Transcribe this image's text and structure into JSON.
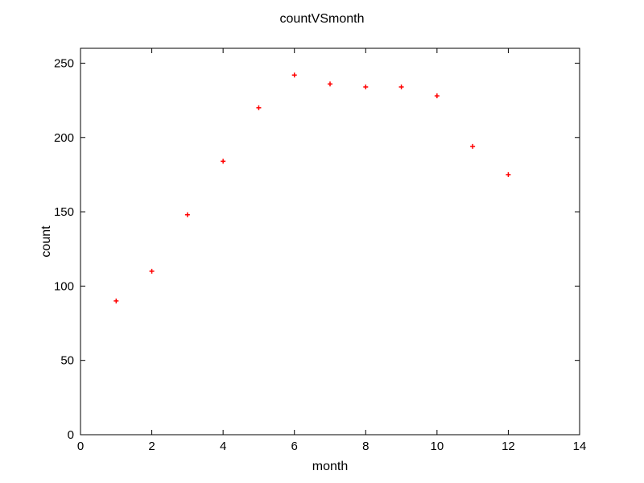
{
  "chart_data": {
    "type": "scatter",
    "title": "countVSmonth",
    "xlabel": "month",
    "ylabel": "count",
    "xlim": [
      0,
      14
    ],
    "ylim": [
      0,
      260
    ],
    "xticks": [
      0,
      2,
      4,
      6,
      8,
      10,
      12,
      14
    ],
    "yticks": [
      0,
      50,
      100,
      150,
      200,
      250
    ],
    "grid": false,
    "marker": "+",
    "marker_color": "#ff0000",
    "series": [
      {
        "x": [
          1,
          2,
          3,
          4,
          5,
          6,
          7,
          8,
          9,
          10,
          11,
          12
        ],
        "y": [
          90,
          110,
          148,
          184,
          220,
          242,
          236,
          234,
          234,
          228,
          194,
          175
        ]
      }
    ]
  }
}
